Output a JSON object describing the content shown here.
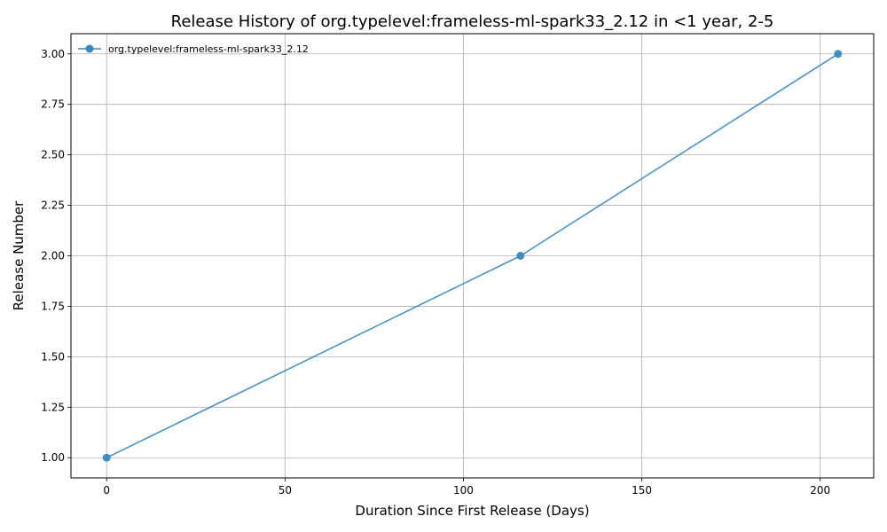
{
  "chart_data": {
    "type": "line",
    "title": "Release History of org.typelevel:frameless-ml-spark33_2.12 in <1 year, 2-5",
    "xlabel": "Duration Since First Release (Days)",
    "ylabel": "Release Number",
    "xlim": [
      -10,
      215
    ],
    "ylim": [
      0.9,
      3.1
    ],
    "xticks": [
      0,
      50,
      100,
      150,
      200
    ],
    "xtick_labels": [
      "0",
      "50",
      "100",
      "150",
      "200"
    ],
    "yticks": [
      1.0,
      1.25,
      1.5,
      1.75,
      2.0,
      2.25,
      2.5,
      2.75,
      3.0
    ],
    "ytick_labels": [
      "1.00",
      "1.25",
      "1.50",
      "1.75",
      "2.00",
      "2.25",
      "2.50",
      "2.75",
      "3.00"
    ],
    "grid": true,
    "legend_position": "top-left",
    "series": [
      {
        "name": "org.typelevel:frameless-ml-spark33_2.12",
        "color": "#3b88bd",
        "marker": "circle",
        "x": [
          0,
          116,
          205
        ],
        "y": [
          1,
          2,
          3
        ]
      }
    ]
  }
}
